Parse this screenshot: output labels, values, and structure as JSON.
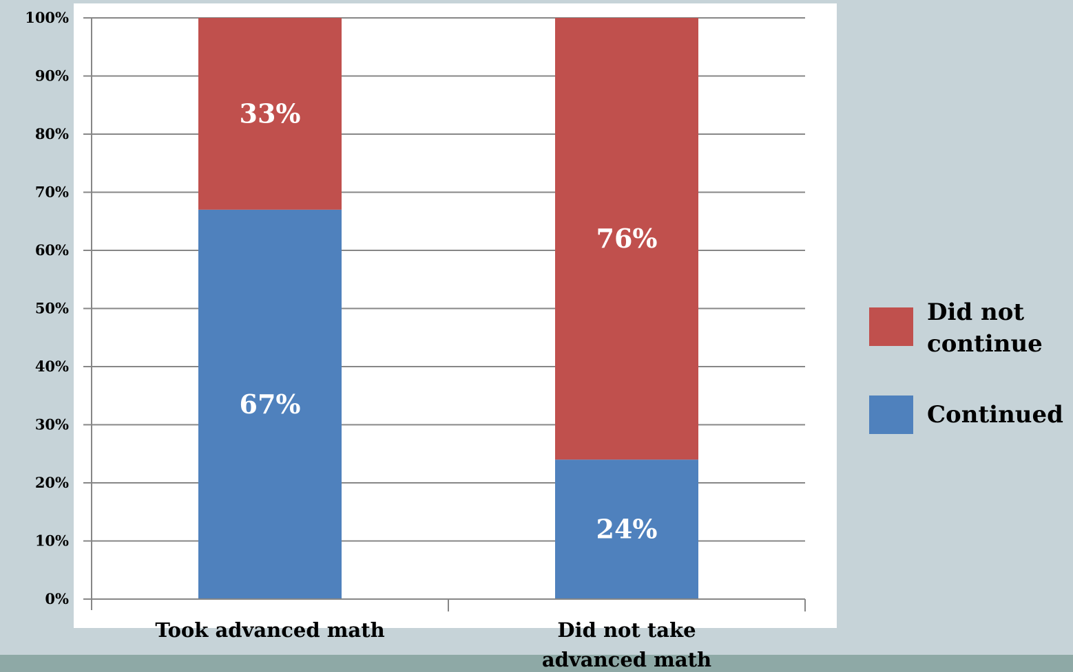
{
  "chart_data": {
    "type": "bar",
    "stacked": true,
    "percent": true,
    "categories": [
      [
        "Took advanced math"
      ],
      [
        "Did not take",
        "advanced math"
      ]
    ],
    "series": [
      {
        "name": "Continued",
        "values": [
          67,
          24
        ],
        "labels": [
          "67%",
          "24%"
        ],
        "color": "#4f81bd"
      },
      {
        "name": "Did not continue",
        "values": [
          33,
          76
        ],
        "labels": [
          "33%",
          "76%"
        ],
        "color": "#c0504d"
      }
    ],
    "yticks": [
      "0%",
      "10%",
      "20%",
      "30%",
      "40%",
      "50%",
      "60%",
      "70%",
      "80%",
      "90%",
      "100%"
    ],
    "ylim": [
      0,
      100
    ],
    "grid": true,
    "legend": {
      "position": "right",
      "entries": [
        {
          "series": "Did not continue",
          "lines": [
            "Did not",
            "continue"
          ],
          "color": "#c0504d"
        },
        {
          "series": "Continued",
          "lines": [
            "Continued"
          ],
          "color": "#4f81bd"
        }
      ]
    },
    "title": "",
    "xlabel": "",
    "ylabel": ""
  },
  "colors": {
    "background": "#c6d3d8",
    "plot_background": "#ffffff",
    "footer_band": "#8ea9a6",
    "gridline": "#868686"
  }
}
